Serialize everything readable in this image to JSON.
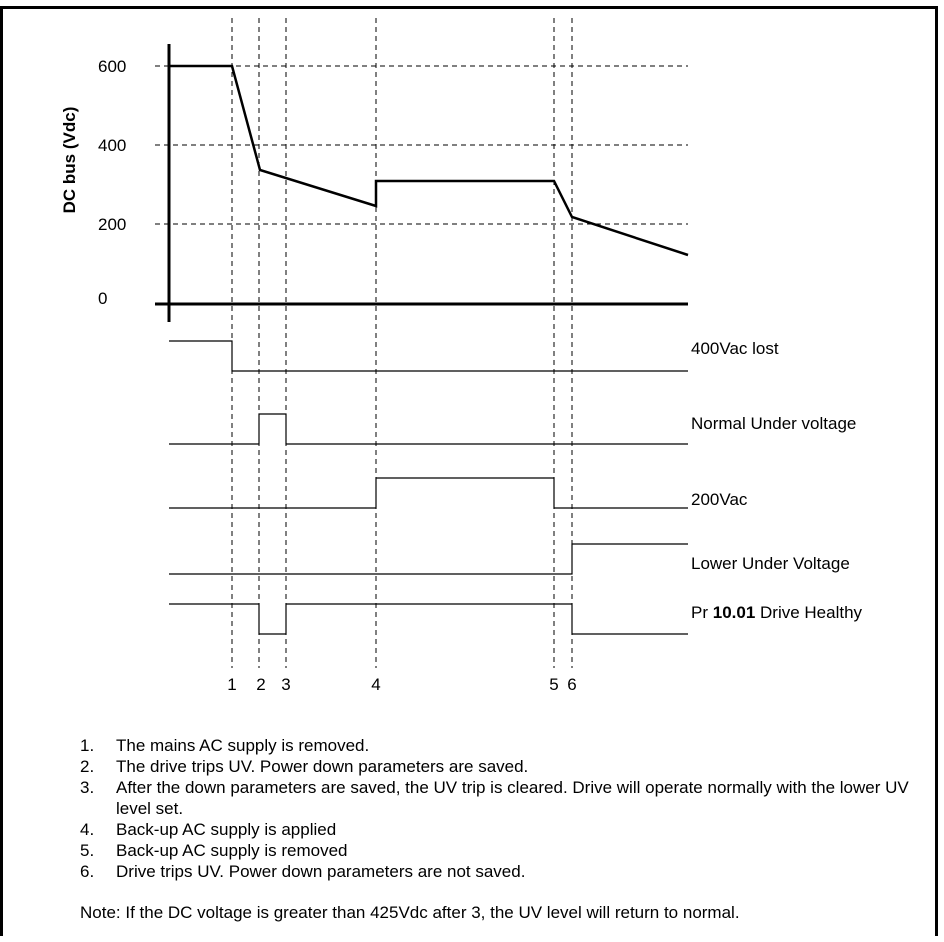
{
  "chart": {
    "ylabel": "DC bus (Vdc)",
    "yticks": [
      "600",
      "400",
      "200",
      "0"
    ]
  },
  "signals": [
    {
      "label": "400Vac lost"
    },
    {
      "label": "Normal Under voltage"
    },
    {
      "label": "200Vac"
    },
    {
      "label": "Lower Under Voltage"
    },
    {
      "label_prefix": "Pr ",
      "label_bold": "10.01",
      "label_suffix": " Drive Healthy"
    }
  ],
  "event_markers": [
    "1",
    "2",
    "3",
    "4",
    "5",
    "6"
  ],
  "notes": [
    {
      "num": "1.",
      "text": "The mains AC supply is removed."
    },
    {
      "num": "2.",
      "text": "The drive trips UV. Power down parameters are saved."
    },
    {
      "num": "3.",
      "text": "After the down parameters are saved, the UV trip is cleared. Drive will operate normally with the lower UV level set."
    },
    {
      "num": "4.",
      "text": "Back-up AC supply is applied"
    },
    {
      "num": "5.",
      "text": "Back-up AC supply is removed"
    },
    {
      "num": "6.",
      "text": "Drive trips UV. Power down parameters are not saved."
    }
  ],
  "footnote": "Note: If the DC voltage is greater than 425Vdc after 3, the UV level will return to normal."
}
